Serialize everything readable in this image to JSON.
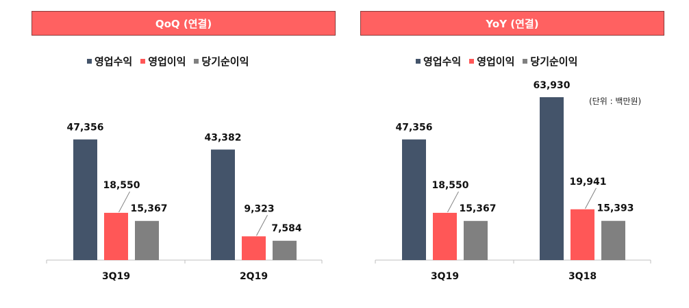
{
  "colors": {
    "header_bg": "#ff6161",
    "revenue": "#44546a",
    "operating_profit": "#ff5757",
    "net_income": "#808080"
  },
  "legend": [
    {
      "label": "영업수익",
      "color": "#44546a"
    },
    {
      "label": "영업이익",
      "color": "#ff5757"
    },
    {
      "label": "당기순이익",
      "color": "#808080"
    }
  ],
  "unit_note": "(단위 : 백만원)",
  "chart_data": [
    {
      "type": "bar",
      "title": "QoQ (연결)",
      "categories": [
        "3Q19",
        "2Q19"
      ],
      "series": [
        {
          "name": "영업수익",
          "values": [
            47356,
            43382
          ],
          "labels": [
            "47,356",
            "43,382"
          ]
        },
        {
          "name": "영업이익",
          "values": [
            18550,
            9323
          ],
          "labels": [
            "18,550",
            "9,323"
          ]
        },
        {
          "name": "당기순이익",
          "values": [
            15367,
            7584
          ],
          "labels": [
            "15,367",
            "7,584"
          ]
        }
      ],
      "ylim": [
        0,
        70000
      ],
      "grid": false
    },
    {
      "type": "bar",
      "title": "YoY (연결)",
      "categories": [
        "3Q19",
        "3Q18"
      ],
      "series": [
        {
          "name": "영업수익",
          "values": [
            47356,
            63930
          ],
          "labels": [
            "47,356",
            "63,930"
          ]
        },
        {
          "name": "영업이익",
          "values": [
            18550,
            19941
          ],
          "labels": [
            "18,550",
            "19,941"
          ]
        },
        {
          "name": "당기순이익",
          "values": [
            15367,
            15393
          ],
          "labels": [
            "15,367",
            "15,393"
          ]
        }
      ],
      "ylim": [
        0,
        70000
      ],
      "grid": false
    }
  ]
}
